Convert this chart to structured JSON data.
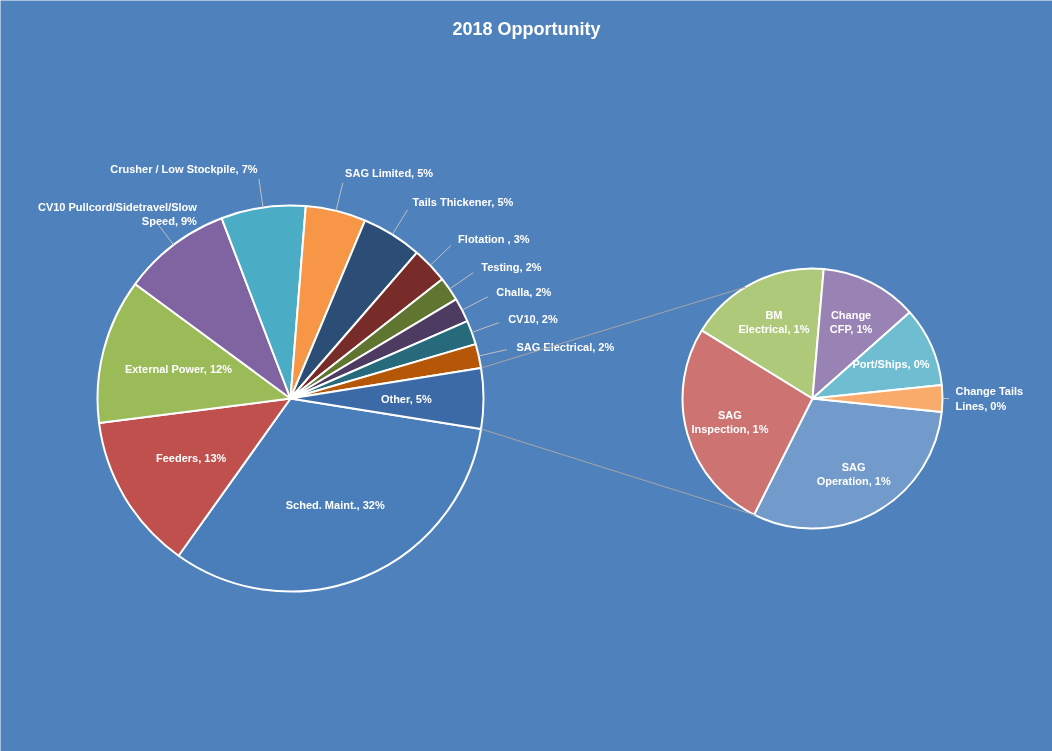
{
  "chart_data": [
    {
      "type": "pie",
      "title": "2018 Opportunity",
      "categories": [
        "Sched. Maint.",
        "Feeders",
        "External Power",
        "CV10 Pullcord/Sidetravel/Slow Speed",
        "Crusher / Low Stockpile",
        "SAG Limited",
        "Tails Thickener",
        "Flotation ",
        "Testing",
        "Challa",
        "CV10",
        "SAG Electrical",
        "Other"
      ],
      "values": [
        32,
        13,
        12,
        9,
        7,
        5,
        5,
        3,
        2,
        2,
        2,
        2,
        5
      ],
      "value_labels": [
        "32%",
        "13%",
        "12%",
        "9%",
        "7%",
        "5%",
        "5%",
        "3%",
        "2%",
        "2%",
        "2%",
        "2%",
        "5%"
      ],
      "colors": [
        "#4a7ebb",
        "#c0504d",
        "#9bbb59",
        "#8064a2",
        "#4bacc6",
        "#f79646",
        "#2c4d75",
        "#772c2a",
        "#5f7530",
        "#4d3b62",
        "#276a7c",
        "#b65708",
        "#3b6aa6"
      ]
    },
    {
      "type": "pie",
      "categories": [
        "SAG Operation",
        "SAG Inspection",
        "BM Electrical",
        "Change CFP",
        "Port/Ships",
        "Change Tails Lines"
      ],
      "values": [
        1.4,
        1.2,
        0.8,
        0.55,
        0.45,
        0.15
      ],
      "value_labels": [
        "1%",
        "1%",
        "1%",
        "1%",
        "0%",
        "0%"
      ],
      "colors": [
        "#729aca",
        "#cd7371",
        "#afc97a",
        "#9983b5",
        "#6fbdd1",
        "#f9ab6b"
      ]
    }
  ]
}
